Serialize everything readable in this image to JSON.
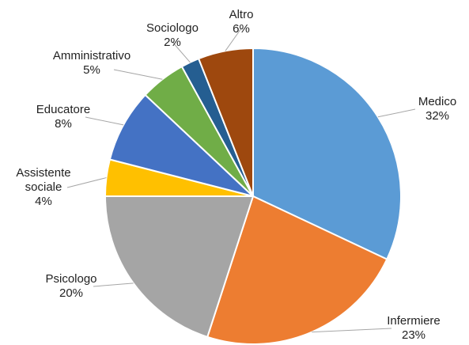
{
  "chart_data": {
    "type": "pie",
    "categories": [
      "Medico",
      "Infermiere",
      "Psicologo",
      "Assistente sociale",
      "Educatore",
      "Amministrativo",
      "Sociologo",
      "Altro"
    ],
    "values": [
      32,
      23,
      20,
      4,
      8,
      5,
      2,
      6
    ],
    "value_labels": [
      "32%",
      "23%",
      "20%",
      "4%",
      "8%",
      "5%",
      "2%",
      "6%"
    ],
    "colors": [
      "#5b9bd5",
      "#ed7d31",
      "#a5a5a5",
      "#ffc000",
      "#4472c4",
      "#70ad47",
      "#255e91",
      "#9e480e"
    ]
  }
}
